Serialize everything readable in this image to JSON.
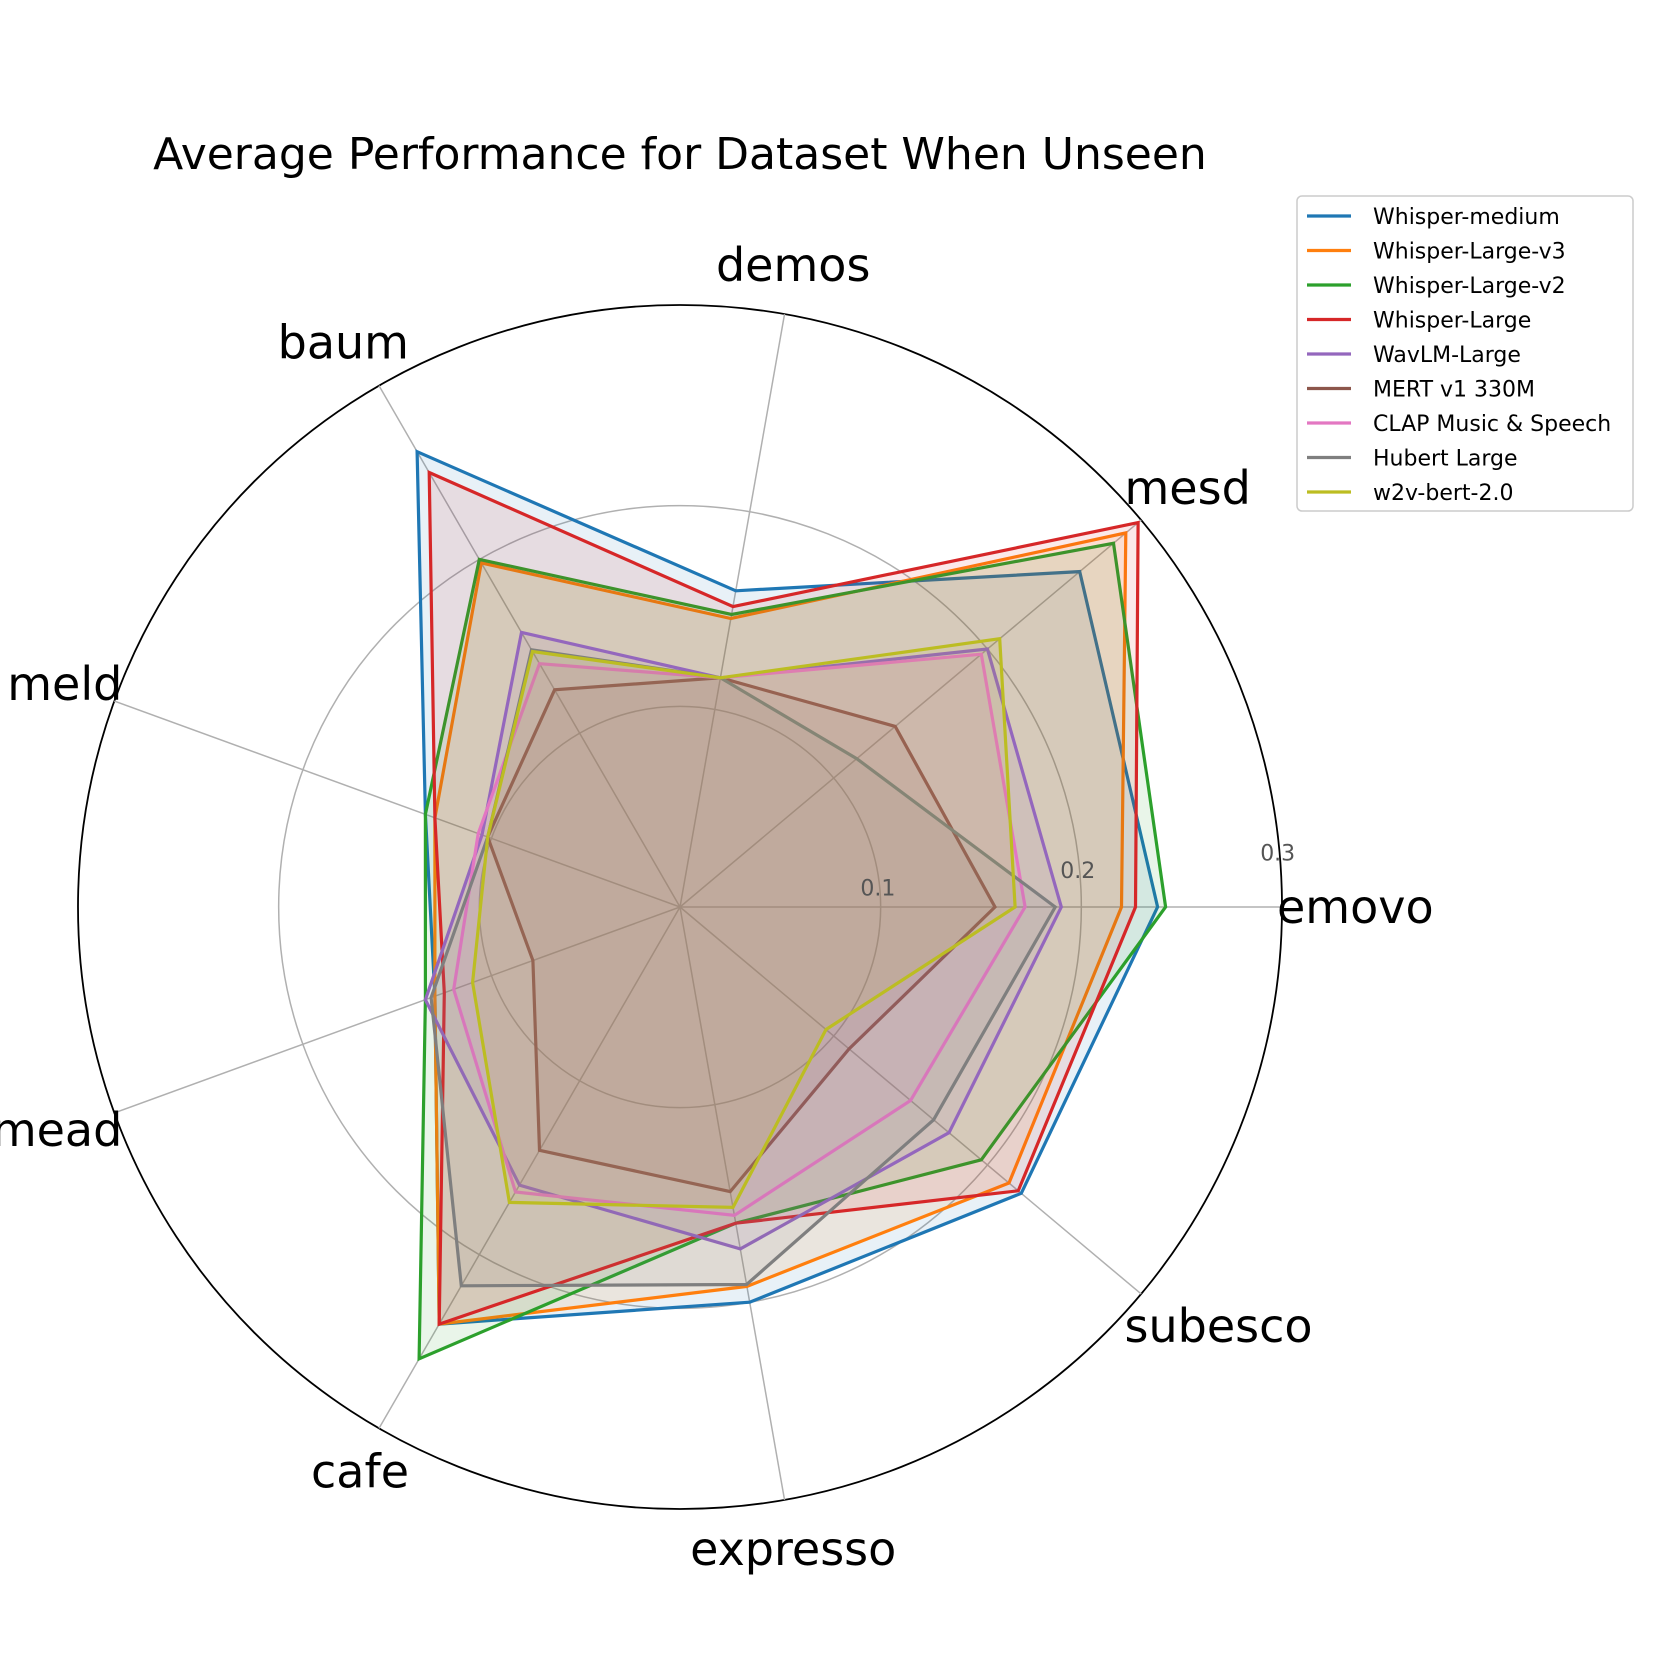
{
  "chart_data": {
    "type": "radar",
    "title": "Average Performance for Dataset When Unseen",
    "categories": [
      "emovo",
      "mesd",
      "demos",
      "baum",
      "meld",
      "mead",
      "cafe",
      "expresso",
      "subesco"
    ],
    "r_ticks": [
      "0.1",
      "0.2",
      "0.3"
    ],
    "r_tick_values": [
      0.1,
      0.2,
      0.3
    ],
    "rlim": [
      0,
      0.3
    ],
    "grid": true,
    "legend_position": "upper-right-outside",
    "series": [
      {
        "name": "Whisper-medium",
        "color": "#1f77b4",
        "values": [
          0.238,
          0.26,
          0.16,
          0.262,
          0.135,
          0.13,
          0.24,
          0.2,
          0.222
        ]
      },
      {
        "name": "Whisper-Large-v3",
        "color": "#ff7f0e",
        "values": [
          0.22,
          0.29,
          0.146,
          0.198,
          0.13,
          0.13,
          0.24,
          0.192,
          0.214
        ]
      },
      {
        "name": "Whisper-Large-v2",
        "color": "#2ca02c",
        "values": [
          0.242,
          0.282,
          0.148,
          0.2,
          0.135,
          0.135,
          0.26,
          0.16,
          0.196
        ]
      },
      {
        "name": "Whisper-Large",
        "color": "#d62728",
        "values": [
          0.227,
          0.298,
          0.152,
          0.25,
          0.13,
          0.125,
          0.24,
          0.16,
          0.22
        ]
      },
      {
        "name": "WavLM-Large",
        "color": "#9467bd",
        "values": [
          0.19,
          0.2,
          0.116,
          0.158,
          0.105,
          0.135,
          0.16,
          0.173,
          0.175
        ]
      },
      {
        "name": "MERT v1 330M",
        "color": "#8c564b",
        "values": [
          0.157,
          0.14,
          0.116,
          0.125,
          0.102,
          0.078,
          0.14,
          0.144,
          0.11
        ]
      },
      {
        "name": "CLAP Music & Speech",
        "color": "#e377c2",
        "values": [
          0.172,
          0.196,
          0.116,
          0.14,
          0.107,
          0.12,
          0.164,
          0.156,
          0.15
        ]
      },
      {
        "name": "Hubert Large",
        "color": "#7f7f7f",
        "values": [
          0.187,
          0.115,
          0.116,
          0.148,
          0.102,
          0.132,
          0.218,
          0.191,
          0.165
        ]
      },
      {
        "name": "w2v-bert-2.0",
        "color": "#bcbd22",
        "values": [
          0.167,
          0.208,
          0.116,
          0.147,
          0.102,
          0.11,
          0.17,
          0.152,
          0.095
        ]
      }
    ]
  }
}
